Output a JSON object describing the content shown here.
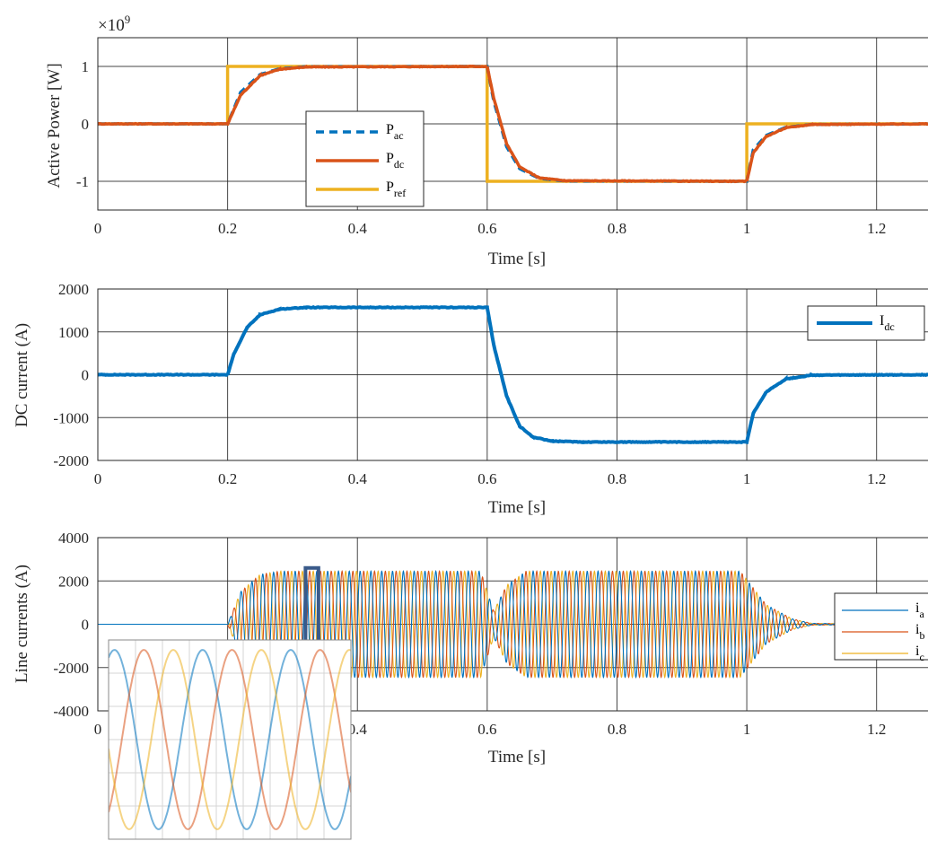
{
  "chart_data": [
    {
      "type": "line",
      "ylabel": "Active Power [W]",
      "xlabel": "Time [s]",
      "exponent_label": "×10",
      "exponent_power": "9",
      "xlim": [
        0,
        1.3
      ],
      "ylim": [
        -1.5,
        1.5
      ],
      "xticks": [
        0,
        0.2,
        0.4,
        0.6,
        0.8,
        1,
        1.2
      ],
      "xtick_labels": [
        "0",
        "0.2",
        "0.4",
        "0.6",
        "0.8",
        "1",
        "1.2"
      ],
      "yticks": [
        -1,
        0,
        1
      ],
      "ytick_labels": [
        "-1",
        "0",
        "1"
      ],
      "grid": true,
      "legend_position": "center-left",
      "series": [
        {
          "name": "P",
          "sub": "ac",
          "color": "#0072BD",
          "style": "dashed",
          "points": [
            [
              0,
              0
            ],
            [
              0.2,
              0
            ],
            [
              0.22,
              0.55
            ],
            [
              0.25,
              0.86
            ],
            [
              0.28,
              0.96
            ],
            [
              0.32,
              0.995
            ],
            [
              0.6,
              1
            ],
            [
              0.61,
              0.4
            ],
            [
              0.63,
              -0.4
            ],
            [
              0.65,
              -0.78
            ],
            [
              0.68,
              -0.95
            ],
            [
              0.72,
              -0.995
            ],
            [
              1.0,
              -1
            ],
            [
              1.01,
              -0.45
            ],
            [
              1.03,
              -0.2
            ],
            [
              1.06,
              -0.06
            ],
            [
              1.1,
              -0.01
            ],
            [
              1.3,
              0
            ]
          ]
        },
        {
          "name": "P",
          "sub": "dc",
          "color": "#D95319",
          "style": "solid",
          "points": [
            [
              0,
              0
            ],
            [
              0.2,
              0
            ],
            [
              0.22,
              0.5
            ],
            [
              0.25,
              0.84
            ],
            [
              0.28,
              0.95
            ],
            [
              0.32,
              0.99
            ],
            [
              0.6,
              1
            ],
            [
              0.61,
              0.45
            ],
            [
              0.63,
              -0.35
            ],
            [
              0.65,
              -0.75
            ],
            [
              0.68,
              -0.94
            ],
            [
              0.72,
              -0.99
            ],
            [
              1.0,
              -1
            ],
            [
              1.01,
              -0.5
            ],
            [
              1.03,
              -0.22
            ],
            [
              1.06,
              -0.07
            ],
            [
              1.1,
              -0.01
            ],
            [
              1.3,
              0
            ]
          ]
        },
        {
          "name": "P",
          "sub": "ref",
          "color": "#EDB120",
          "style": "solid",
          "points": [
            [
              0,
              0
            ],
            [
              0.2,
              0
            ],
            [
              0.2,
              1
            ],
            [
              0.6,
              1
            ],
            [
              0.6,
              -1
            ],
            [
              1.0,
              -1
            ],
            [
              1.0,
              0
            ],
            [
              1.3,
              0
            ]
          ]
        }
      ]
    },
    {
      "type": "line",
      "ylabel": "DC current (A)",
      "xlabel": "Time [s]",
      "xlim": [
        0,
        1.3
      ],
      "ylim": [
        -2000,
        2000
      ],
      "xticks": [
        0,
        0.2,
        0.4,
        0.6,
        0.8,
        1,
        1.2
      ],
      "xtick_labels": [
        "0",
        "0.2",
        "0.4",
        "0.6",
        "0.8",
        "1",
        "1.2"
      ],
      "yticks": [
        -2000,
        -1000,
        0,
        1000,
        2000
      ],
      "ytick_labels": [
        "-2000",
        "-1000",
        "0",
        "1000",
        "2000"
      ],
      "grid": true,
      "legend_position": "top-right",
      "series": [
        {
          "name": "I",
          "sub": "dc",
          "color": "#0072BD",
          "style": "solid",
          "points": [
            [
              0,
              0
            ],
            [
              0.2,
              0
            ],
            [
              0.21,
              500
            ],
            [
              0.23,
              1100
            ],
            [
              0.25,
              1400
            ],
            [
              0.28,
              1530
            ],
            [
              0.32,
              1570
            ],
            [
              0.6,
              1570
            ],
            [
              0.61,
              700
            ],
            [
              0.63,
              -500
            ],
            [
              0.65,
              -1200
            ],
            [
              0.67,
              -1450
            ],
            [
              0.7,
              -1550
            ],
            [
              0.75,
              -1570
            ],
            [
              1.0,
              -1570
            ],
            [
              1.01,
              -900
            ],
            [
              1.03,
              -400
            ],
            [
              1.06,
              -100
            ],
            [
              1.1,
              -10
            ],
            [
              1.3,
              0
            ]
          ]
        }
      ]
    },
    {
      "type": "line",
      "ylabel": "Line currents (A)",
      "xlabel": "Time [s]",
      "xlim": [
        0,
        1.3
      ],
      "ylim": [
        -4000,
        4000
      ],
      "xticks": [
        0,
        0.2,
        0.4,
        0.6,
        0.8,
        1,
        1.2
      ],
      "xtick_labels": [
        "0",
        "0.2",
        "0.4",
        "0.6",
        "0.8",
        "1",
        "1.2"
      ],
      "yticks": [
        -4000,
        -2000,
        0,
        2000,
        4000
      ],
      "ytick_labels": [
        "-4000",
        "-2000",
        "0",
        "2000",
        "4000"
      ],
      "grid": true,
      "legend_position": "right",
      "frequency_hz": 60,
      "amplitude": 2450,
      "envelope": [
        [
          0,
          0
        ],
        [
          0.2,
          0
        ],
        [
          0.22,
          1500
        ],
        [
          0.25,
          2300
        ],
        [
          0.28,
          2450
        ],
        [
          0.59,
          2450
        ],
        [
          0.61,
          600
        ],
        [
          0.63,
          1800
        ],
        [
          0.66,
          2450
        ],
        [
          0.99,
          2450
        ],
        [
          1.03,
          900
        ],
        [
          1.07,
          250
        ],
        [
          1.1,
          40
        ],
        [
          1.3,
          0
        ]
      ],
      "highlight_box": {
        "x0": 0.32,
        "x1": 0.34,
        "y0": -2600,
        "y1": 2600
      },
      "series": [
        {
          "name": "i",
          "sub": "a",
          "color": "#0072BD"
        },
        {
          "name": "i",
          "sub": "b",
          "color": "#D95319"
        },
        {
          "name": "i",
          "sub": "c",
          "color": "#EDB120"
        }
      ],
      "inset": {
        "cycles": 2.75,
        "colors": [
          "#0072BD",
          "#D95319",
          "#EDB120"
        ]
      }
    }
  ]
}
